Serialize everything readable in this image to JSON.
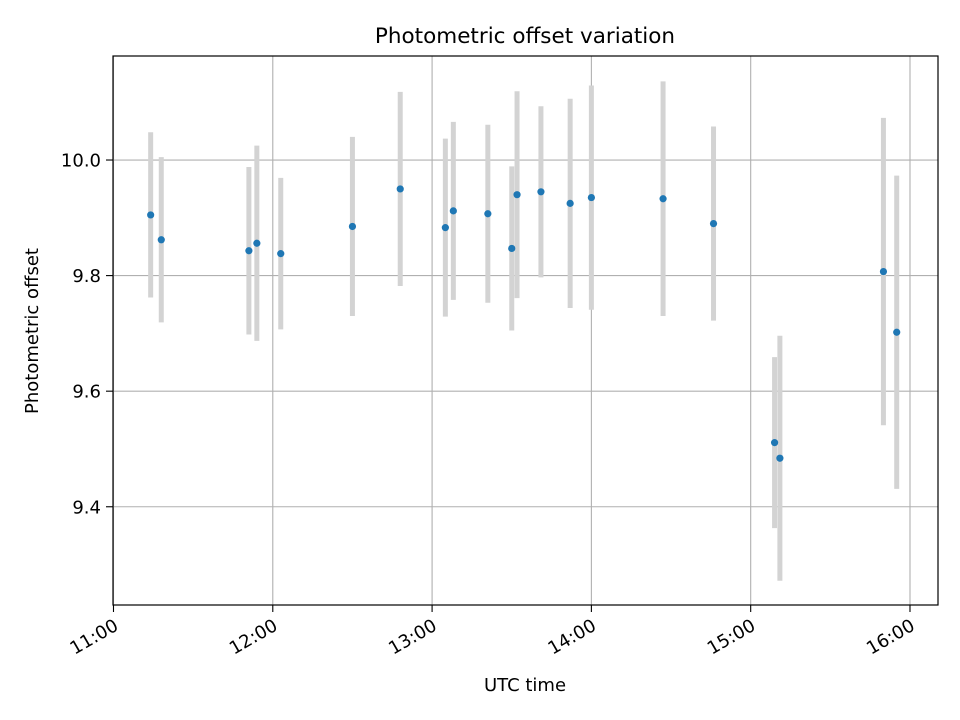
{
  "chart_data": {
    "type": "scatter",
    "title": "Photometric offset variation",
    "xlabel": "UTC time",
    "ylabel": "Photometric offset",
    "x_ticks": [
      "11:00",
      "12:00",
      "13:00",
      "14:00",
      "15:00",
      "16:00"
    ],
    "y_ticks": [
      "9.4",
      "9.6",
      "9.8",
      "10.0"
    ],
    "xlim": [
      "10:59:49",
      "16:10:33"
    ],
    "ylim": [
      9.23,
      10.18
    ],
    "grid": true,
    "point_color": "#1f77b4",
    "errorbar_color": "#d3d3d3",
    "points": [
      {
        "x": "11:14",
        "y": 9.905,
        "err": 0.143
      },
      {
        "x": "11:18",
        "y": 9.862,
        "err": 0.143
      },
      {
        "x": "11:51",
        "y": 9.843,
        "err": 0.145
      },
      {
        "x": "11:54",
        "y": 9.856,
        "err": 0.169
      },
      {
        "x": "12:03",
        "y": 9.838,
        "err": 0.131
      },
      {
        "x": "12:30",
        "y": 9.885,
        "err": 0.155
      },
      {
        "x": "12:48",
        "y": 9.95,
        "err": 0.168
      },
      {
        "x": "13:05",
        "y": 9.883,
        "err": 0.154
      },
      {
        "x": "13:08",
        "y": 9.912,
        "err": 0.154
      },
      {
        "x": "13:21",
        "y": 9.907,
        "err": 0.154
      },
      {
        "x": "13:30",
        "y": 9.847,
        "err": 0.142
      },
      {
        "x": "13:32",
        "y": 9.94,
        "err": 0.179
      },
      {
        "x": "13:41",
        "y": 9.945,
        "err": 0.148
      },
      {
        "x": "13:52",
        "y": 9.925,
        "err": 0.181
      },
      {
        "x": "14:00",
        "y": 9.935,
        "err": 0.194
      },
      {
        "x": "14:27",
        "y": 9.933,
        "err": 0.203
      },
      {
        "x": "14:46",
        "y": 9.89,
        "err": 0.168
      },
      {
        "x": "15:09",
        "y": 9.511,
        "err": 0.148
      },
      {
        "x": "15:11",
        "y": 9.484,
        "err": 0.212
      },
      {
        "x": "15:50",
        "y": 9.807,
        "err": 0.266
      },
      {
        "x": "15:55",
        "y": 9.702,
        "err": 0.271
      }
    ]
  }
}
